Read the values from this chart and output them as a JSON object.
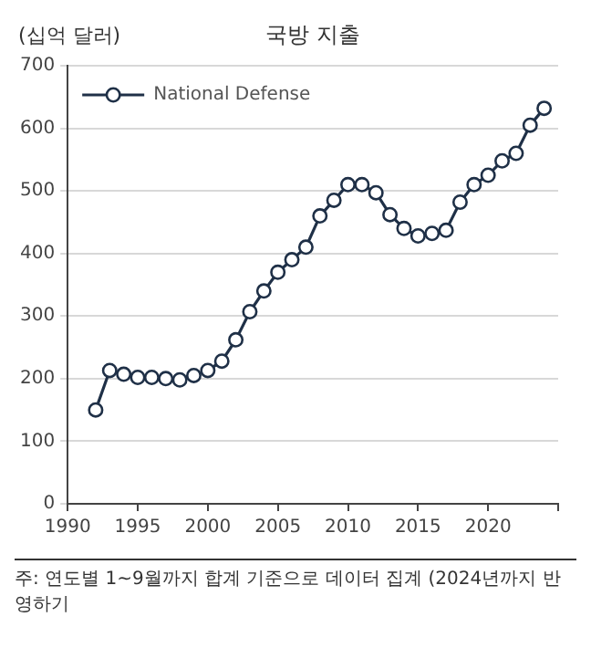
{
  "chart_data": {
    "type": "line",
    "title": "국방 지출",
    "ylabel": "(십억 달러)",
    "x": [
      1992,
      1993,
      1994,
      1995,
      1996,
      1997,
      1998,
      1999,
      2000,
      2001,
      2002,
      2003,
      2004,
      2005,
      2006,
      2007,
      2008,
      2009,
      2010,
      2011,
      2012,
      2013,
      2014,
      2015,
      2016,
      2017,
      2018,
      2019,
      2020,
      2021,
      2022,
      2023,
      2024
    ],
    "series": [
      {
        "name": "National Defense",
        "color": "#1f3047",
        "values": [
          150,
          213,
          207,
          202,
          202,
          200,
          198,
          205,
          213,
          228,
          262,
          307,
          340,
          370,
          390,
          410,
          460,
          485,
          510,
          510,
          497,
          462,
          440,
          428,
          432,
          437,
          482,
          510,
          525,
          548,
          560,
          605,
          632
        ]
      }
    ],
    "xlim": [
      1990,
      2025
    ],
    "xticks": [
      1990,
      1995,
      2000,
      2005,
      2010,
      2015,
      2020,
      {
        "value": 2025,
        "label": null
      }
    ],
    "ylim": [
      0,
      700
    ],
    "yticks": [
      0,
      100,
      200,
      300,
      400,
      500,
      600,
      700
    ],
    "grid": "y",
    "legend": "top left",
    "marker": "circle",
    "line_style": "solid",
    "annotations": [
      "주: 연도별 1~9월까지 합계 기준으로 데이터 집계 (2024년까지 반영하기"
    ]
  }
}
